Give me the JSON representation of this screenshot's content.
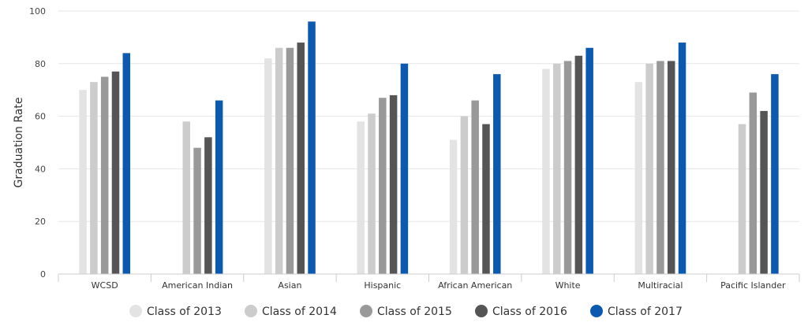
{
  "chart_data": {
    "type": "bar",
    "title": "",
    "xlabel": "",
    "ylabel": "Graduation Rate",
    "ylim": [
      0,
      100
    ],
    "yticks": [
      0,
      20,
      40,
      60,
      80,
      100
    ],
    "grid": true,
    "legend_position": "bottom",
    "categories": [
      "WCSD",
      "American Indian",
      "Asian",
      "Hispanic",
      "African American",
      "White",
      "Multiracial",
      "Pacific Islander"
    ],
    "series": [
      {
        "name": "Class of 2013",
        "color": "#e3e3e3",
        "values": [
          70,
          0,
          82,
          58,
          51,
          78,
          73,
          0
        ]
      },
      {
        "name": "Class of 2014",
        "color": "#cccccc",
        "values": [
          73,
          58,
          86,
          61,
          60,
          80,
          80,
          57
        ]
      },
      {
        "name": "Class of 2015",
        "color": "#999999",
        "values": [
          75,
          48,
          86,
          67,
          66,
          81,
          81,
          69
        ]
      },
      {
        "name": "Class of 2016",
        "color": "#555555",
        "values": [
          77,
          52,
          88,
          68,
          57,
          83,
          81,
          62
        ]
      },
      {
        "name": "Class of 2017",
        "color": "#0b5aaf",
        "values": [
          84,
          66,
          96,
          80,
          76,
          86,
          88,
          76
        ]
      }
    ],
    "extra_bars_note": ""
  }
}
